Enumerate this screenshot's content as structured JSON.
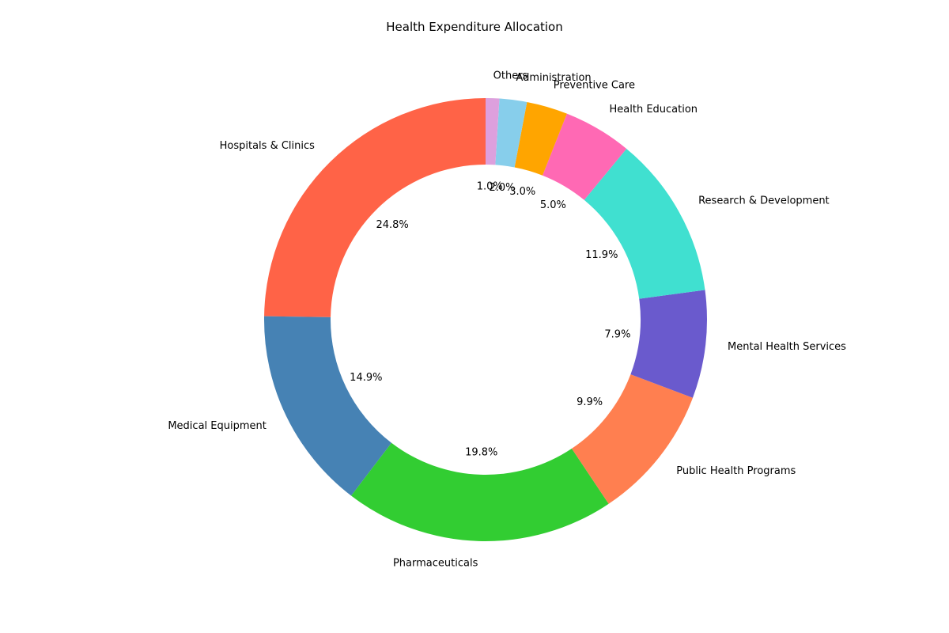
{
  "chart_data": {
    "type": "pie",
    "style": "donut",
    "title": "Health Expenditure Allocation",
    "start_angle_deg": 90,
    "direction": "counterclockwise",
    "slices": [
      {
        "label": "Hospitals & Clinics",
        "value": 24.8,
        "pct_label": "24.8%",
        "color": "#FF6347"
      },
      {
        "label": "Medical Equipment",
        "value": 14.9,
        "pct_label": "14.9%",
        "color": "#4682B4"
      },
      {
        "label": "Pharmaceuticals",
        "value": 19.8,
        "pct_label": "19.8%",
        "color": "#32CD32"
      },
      {
        "label": "Public Health Programs",
        "value": 9.9,
        "pct_label": "9.9%",
        "color": "#FF7F50"
      },
      {
        "label": "Mental Health Services",
        "value": 7.9,
        "pct_label": "7.9%",
        "color": "#6A5ACD"
      },
      {
        "label": "Research & Development",
        "value": 11.9,
        "pct_label": "11.9%",
        "color": "#40E0D0"
      },
      {
        "label": "Health Education",
        "value": 5.0,
        "pct_label": "5.0%",
        "color": "#FF69B4"
      },
      {
        "label": "Preventive Care",
        "value": 3.0,
        "pct_label": "3.0%",
        "color": "#FFA500"
      },
      {
        "label": "Administration",
        "value": 2.0,
        "pct_label": "2.0%",
        "color": "#87CEEB"
      },
      {
        "label": "Others",
        "value": 1.0,
        "pct_label": "1.0%",
        "color": "#DDA0DD"
      }
    ]
  }
}
